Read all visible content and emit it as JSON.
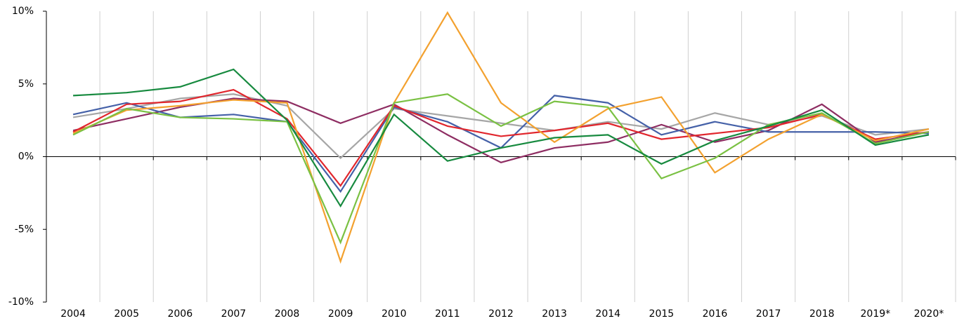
{
  "chart_data": {
    "type": "line",
    "categories": [
      "2004",
      "2005",
      "2006",
      "2007",
      "2008",
      "2009",
      "2010",
      "2011",
      "2012",
      "2013",
      "2014",
      "2015",
      "2016",
      "2017",
      "2018",
      "2019*",
      "2020*"
    ],
    "series": [
      {
        "color": "#a6a6a6",
        "values": [
          2.7,
          3.3,
          4.0,
          4.3,
          3.5,
          -0.1,
          3.3,
          2.8,
          2.3,
          1.8,
          2.4,
          1.9,
          3.0,
          2.2,
          2.8,
          1.5,
          1.9
        ]
      },
      {
        "color": "#8e2d62",
        "values": [
          1.8,
          2.6,
          3.4,
          4.0,
          3.8,
          2.3,
          3.6,
          1.5,
          -0.4,
          0.6,
          1.0,
          2.2,
          1.0,
          1.8,
          3.6,
          1.0,
          1.7
        ]
      },
      {
        "color": "#4561a8",
        "values": [
          2.9,
          3.7,
          2.7,
          2.9,
          2.4,
          -2.4,
          3.4,
          2.4,
          0.6,
          4.2,
          3.7,
          1.5,
          2.4,
          1.7,
          1.7,
          1.7,
          1.6
        ]
      },
      {
        "color": "#e1262d",
        "values": [
          1.7,
          3.6,
          3.8,
          4.6,
          2.6,
          -2.0,
          3.5,
          2.1,
          1.4,
          1.8,
          2.3,
          1.2,
          1.6,
          2.0,
          2.9,
          1.2,
          1.7
        ]
      },
      {
        "color": "#f3a12f",
        "values": [
          1.6,
          3.2,
          3.5,
          3.9,
          3.7,
          -7.2,
          3.7,
          9.9,
          3.7,
          1.0,
          3.3,
          4.1,
          -1.1,
          1.2,
          2.9,
          1.1,
          1.9
        ]
      },
      {
        "color": "#7ac143",
        "values": [
          1.5,
          3.3,
          2.7,
          2.6,
          2.4,
          -5.9,
          3.7,
          4.3,
          2.1,
          3.8,
          3.4,
          -1.5,
          -0.1,
          2.2,
          3.0,
          0.9,
          1.7
        ]
      },
      {
        "color": "#178a3f",
        "values": [
          4.2,
          4.4,
          4.8,
          6.0,
          2.5,
          -3.4,
          2.9,
          -0.3,
          0.6,
          1.3,
          1.5,
          -0.5,
          1.1,
          2.1,
          3.2,
          0.8,
          1.5
        ]
      }
    ],
    "ylim": [
      -10,
      10
    ],
    "yticks": [
      {
        "value": -10,
        "label": "-10%"
      },
      {
        "value": -5,
        "label": "-5%"
      },
      {
        "value": 0,
        "label": "0%"
      },
      {
        "value": 5,
        "label": "5%"
      },
      {
        "value": 10,
        "label": "10%"
      }
    ],
    "grid": true
  }
}
